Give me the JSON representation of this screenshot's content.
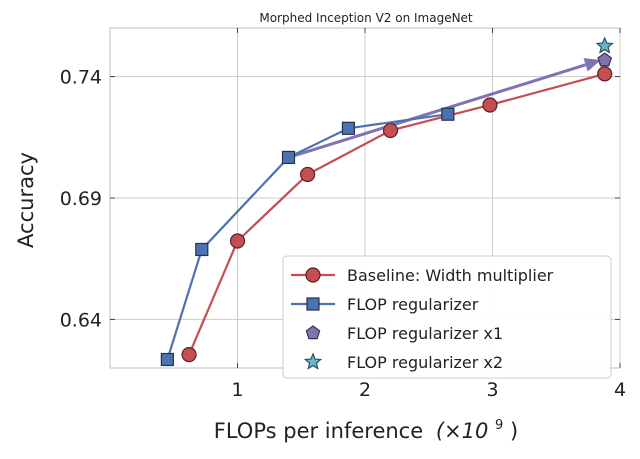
{
  "chart_data": {
    "type": "line",
    "title": "Morphed Inception V2 on ImageNet",
    "xlabel": "FLOPs per inference",
    "xlabel_unit": "(×10",
    "xlabel_exp": "9",
    "xlabel_close": ")",
    "ylabel": "Accuracy",
    "xlim": [
      0.0,
      4.0
    ],
    "ylim": [
      0.62,
      0.76
    ],
    "x_ticks": [
      1,
      2,
      3,
      4
    ],
    "x_tick_labels": [
      "1",
      "2",
      "3",
      "4"
    ],
    "y_ticks": [
      0.64,
      0.69,
      0.74
    ],
    "y_tick_labels": [
      "0.64",
      "0.69",
      "0.74"
    ],
    "grid": true,
    "legend_position": "bottom-right",
    "series": [
      {
        "name": "Baseline: Width multiplier",
        "color": "#c44e52",
        "marker": "circle",
        "line": true,
        "x": [
          0.62,
          1.0,
          1.55,
          2.2,
          2.98,
          3.88
        ],
        "y": [
          0.6255,
          0.6723,
          0.6997,
          0.7178,
          0.7283,
          0.7411
        ]
      },
      {
        "name": "FLOP regularizer",
        "color": "#4c72b0",
        "marker": "square",
        "line": true,
        "x": [
          0.45,
          0.72,
          1.4,
          1.87,
          2.65
        ],
        "y": [
          0.6235,
          0.6688,
          0.7067,
          0.7187,
          0.7245
        ]
      },
      {
        "name": "FLOP regularizer x1",
        "color": "#8172b2",
        "marker": "pentagon",
        "line": false,
        "x": [
          3.88
        ],
        "y": [
          0.7468
        ]
      },
      {
        "name": "FLOP regularizer x2",
        "color": "#64b5cd",
        "marker": "star",
        "line": false,
        "x": [
          3.88
        ],
        "y": [
          0.7526
        ]
      }
    ],
    "arrows": [
      {
        "color": "#8172b2",
        "from": [
          1.4,
          0.7067
        ],
        "to": [
          3.85,
          0.7468
        ]
      }
    ]
  }
}
